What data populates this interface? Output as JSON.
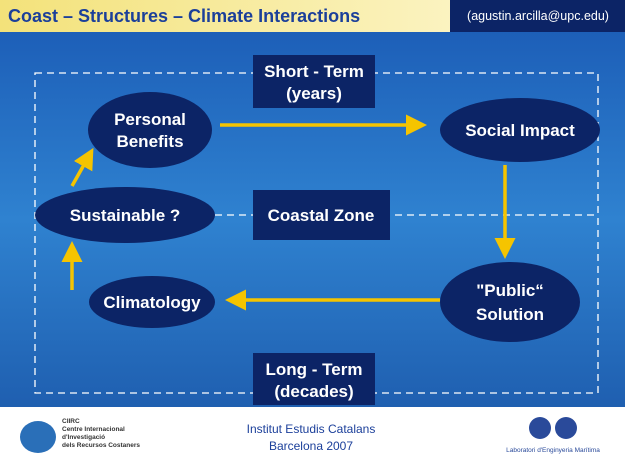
{
  "header": {
    "title": "Coast – Structures – Climate Interactions",
    "email": "(agustin.arcilla@upc.edu)"
  },
  "nodes": [
    {
      "lines": [
        "Personal",
        "Benefits"
      ]
    },
    {
      "lines": [
        "Social Impact"
      ]
    },
    {
      "lines": [
        "Sustainable ?"
      ]
    },
    {
      "lines": [
        "Climatology"
      ]
    },
    {
      "lines": [
        "\"Public“",
        "Solution"
      ]
    }
  ],
  "boxes": [
    {
      "lines": [
        "Short - Term",
        "(years)"
      ]
    },
    {
      "lines": [
        "Coastal Zone"
      ]
    },
    {
      "lines": [
        "Long - Term",
        "(decades)"
      ]
    }
  ],
  "footer": {
    "lines": [
      "Institut Estudis Catalans",
      "Barcelona  2007"
    ],
    "left_logo": [
      "CIIRC",
      "Centre Internacional",
      "d'Investigació",
      "dels Recursos Costaners"
    ],
    "right_logo": [
      "Laboratori d'Enginyeria Marítima"
    ]
  }
}
